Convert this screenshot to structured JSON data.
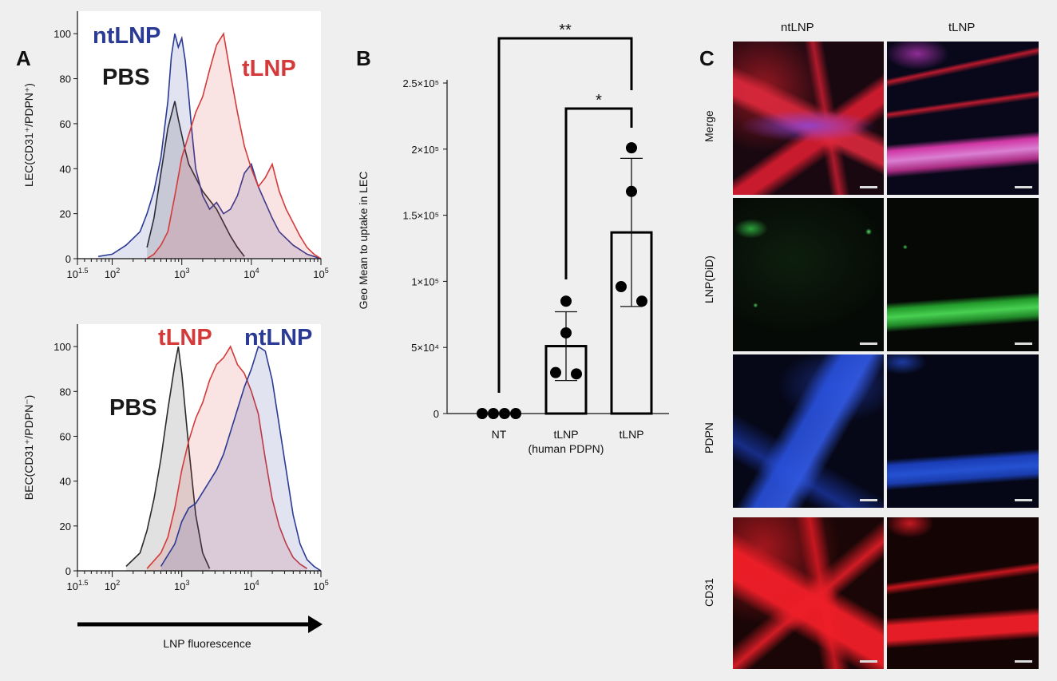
{
  "panels": {
    "a": "A",
    "b": "B",
    "c": "C"
  },
  "chart_data": [
    {
      "type": "area",
      "panel": "A",
      "ylabel": "LEC(CD31⁺/PDPN⁺)",
      "xlim_log10": [
        1.5,
        5
      ],
      "ylim": [
        0,
        110
      ],
      "x_tick_labels": [
        {
          "log10": 1.5,
          "label": "10^1.5"
        },
        {
          "log10": 2,
          "label": "10^2"
        },
        {
          "log10": 3,
          "label": "10^3"
        },
        {
          "log10": 4,
          "label": "10^4"
        },
        {
          "log10": 5,
          "label": "10^5"
        }
      ],
      "y_ticks": [
        0,
        20,
        40,
        60,
        80,
        100
      ],
      "series": [
        {
          "name": "PBS",
          "color": "#2a2a2a",
          "x_log10": [
            2.5,
            2.6,
            2.7,
            2.8,
            2.9,
            2.95,
            3.0,
            3.05,
            3.1,
            3.2,
            3.3,
            3.4,
            3.5,
            3.6,
            3.7,
            3.8,
            3.9
          ],
          "y": [
            5,
            18,
            38,
            58,
            70,
            62,
            55,
            48,
            42,
            36,
            30,
            26,
            22,
            16,
            10,
            5,
            1
          ]
        },
        {
          "name": "ntLNP",
          "color": "#2b3a94",
          "x_log10": [
            1.8,
            2.0,
            2.2,
            2.4,
            2.5,
            2.6,
            2.7,
            2.8,
            2.85,
            2.9,
            2.95,
            3.0,
            3.05,
            3.1,
            3.15,
            3.2,
            3.3,
            3.4,
            3.5,
            3.6,
            3.7,
            3.8,
            3.9,
            4.0,
            4.1,
            4.2,
            4.3,
            4.4,
            4.6,
            4.8,
            5.0
          ],
          "y": [
            1,
            2,
            6,
            12,
            20,
            30,
            45,
            70,
            90,
            100,
            94,
            98,
            88,
            72,
            55,
            40,
            28,
            22,
            25,
            20,
            22,
            28,
            38,
            42,
            32,
            25,
            18,
            12,
            6,
            2,
            0
          ]
        },
        {
          "name": "tLNP",
          "color": "#d43a3a",
          "x_log10": [
            2.5,
            2.6,
            2.7,
            2.8,
            2.9,
            3.0,
            3.1,
            3.2,
            3.3,
            3.4,
            3.5,
            3.6,
            3.7,
            3.8,
            3.9,
            4.0,
            4.1,
            4.2,
            4.3,
            4.4,
            4.5,
            4.6,
            4.7,
            4.8,
            4.9,
            5.0
          ],
          "y": [
            0,
            2,
            6,
            12,
            28,
            45,
            55,
            65,
            72,
            84,
            95,
            100,
            82,
            65,
            50,
            40,
            32,
            36,
            42,
            30,
            22,
            16,
            10,
            5,
            2,
            0
          ]
        }
      ],
      "legend": [
        {
          "name": "ntLNP",
          "color": "#2b3a94"
        },
        {
          "name": "PBS",
          "color": "#1a1a1a"
        },
        {
          "name": "tLNP",
          "color": "#d43a3a"
        }
      ]
    },
    {
      "type": "area",
      "panel": "A",
      "ylabel": "BEC(CD31⁺/PDPN⁻)",
      "xlabel": "LNP fluorescence",
      "xlim_log10": [
        1.5,
        5
      ],
      "ylim": [
        0,
        110
      ],
      "x_tick_labels": [
        {
          "log10": 1.5,
          "label": "10^1.5"
        },
        {
          "log10": 2,
          "label": "10^2"
        },
        {
          "log10": 3,
          "label": "10^3"
        },
        {
          "log10": 4,
          "label": "10^4"
        },
        {
          "log10": 5,
          "label": "10^5"
        }
      ],
      "y_ticks": [
        0,
        20,
        40,
        60,
        80,
        100
      ],
      "series": [
        {
          "name": "PBS",
          "color": "#2a2a2a",
          "x_log10": [
            2.2,
            2.4,
            2.5,
            2.6,
            2.7,
            2.8,
            2.9,
            2.95,
            3.0,
            3.1,
            3.2,
            3.3,
            3.4
          ],
          "y": [
            2,
            8,
            18,
            32,
            50,
            72,
            92,
            100,
            88,
            55,
            25,
            8,
            1
          ]
        },
        {
          "name": "tLNP",
          "color": "#d43a3a",
          "x_log10": [
            2.5,
            2.7,
            2.8,
            2.9,
            3.0,
            3.1,
            3.2,
            3.3,
            3.4,
            3.5,
            3.6,
            3.7,
            3.8,
            3.9,
            4.0,
            4.1,
            4.2,
            4.3,
            4.4,
            4.5,
            4.6,
            4.7,
            4.8
          ],
          "y": [
            1,
            8,
            15,
            28,
            45,
            58,
            68,
            75,
            85,
            92,
            95,
            100,
            92,
            88,
            80,
            70,
            50,
            32,
            20,
            12,
            6,
            3,
            1
          ]
        },
        {
          "name": "ntLNP",
          "color": "#2b3a94",
          "x_log10": [
            2.7,
            2.9,
            3.0,
            3.1,
            3.2,
            3.3,
            3.4,
            3.5,
            3.6,
            3.7,
            3.8,
            3.9,
            4.0,
            4.1,
            4.2,
            4.3,
            4.4,
            4.5,
            4.6,
            4.7,
            4.8,
            4.9,
            5.0
          ],
          "y": [
            2,
            12,
            22,
            28,
            30,
            35,
            40,
            45,
            52,
            62,
            72,
            82,
            90,
            100,
            98,
            85,
            65,
            45,
            25,
            12,
            5,
            2,
            0
          ]
        }
      ],
      "legend": [
        {
          "name": "tLNP",
          "color": "#d43a3a"
        },
        {
          "name": "ntLNP",
          "color": "#2b3a94"
        },
        {
          "name": "PBS",
          "color": "#1a1a1a"
        }
      ]
    },
    {
      "type": "bar",
      "panel": "B",
      "ylabel": "Geo Mean to uptake in LEC",
      "ylim": [
        0,
        250000
      ],
      "y_tick_labels": [
        {
          "value": 0,
          "label": "0"
        },
        {
          "value": 50000,
          "label": "5×10⁴"
        },
        {
          "value": 100000,
          "label": "1×10⁵"
        },
        {
          "value": 150000,
          "label": "1.5×10⁵"
        },
        {
          "value": 200000,
          "label": "2×10⁵"
        },
        {
          "value": 250000,
          "label": "2.5×10⁵"
        }
      ],
      "categories": [
        "NT",
        "tLNP\n(human PDPN)",
        "tLNP"
      ],
      "category_lines": [
        [
          "NT"
        ],
        [
          "tLNP",
          "(human PDPN)"
        ],
        [
          "tLNP"
        ]
      ],
      "values": [
        0,
        51000,
        137000
      ],
      "error_sd": [
        0,
        26000,
        56000
      ],
      "points": [
        [
          0,
          0,
          0,
          0
        ],
        [
          85000,
          61000,
          31000,
          30000
        ],
        [
          201000,
          168000,
          96000,
          85000
        ]
      ],
      "significance": [
        {
          "from": 0,
          "to": 2,
          "label": "**"
        },
        {
          "from": 1,
          "to": 2,
          "label": "*"
        }
      ]
    }
  ],
  "microscopy": {
    "columns": [
      "ntLNP",
      "tLNP"
    ],
    "rows": [
      "Merge",
      "LNP(DiD)",
      "PDPN",
      "CD31"
    ]
  }
}
